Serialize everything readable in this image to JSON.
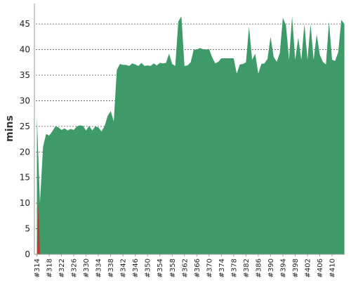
{
  "chart_data": {
    "type": "area",
    "ylabel": "mins",
    "xlabel": "",
    "title": "",
    "ylim": [
      0,
      49
    ],
    "yticks": [
      0,
      5,
      10,
      15,
      20,
      25,
      30,
      35,
      40,
      45
    ],
    "grid": true,
    "x_tick_labels": [
      "#314",
      "#318",
      "#322",
      "#326",
      "#330",
      "#334",
      "#338",
      "#342",
      "#346",
      "#350",
      "#354",
      "#358",
      "#362",
      "#366",
      "#370",
      "#374",
      "#378",
      "#382",
      "#386",
      "#390",
      "#394",
      "#398",
      "#402",
      "#406",
      "#410"
    ],
    "x_start": 314,
    "x_end": 413,
    "colors": {
      "series_main": "#3e9a68",
      "series_secondary": "#c0392b"
    },
    "series": [
      {
        "values": [
          [
            314,
            27
          ],
          [
            315,
            10
          ],
          [
            316,
            21
          ],
          [
            317,
            23.5
          ],
          [
            318,
            23.2
          ],
          [
            319,
            24
          ],
          [
            320,
            25
          ],
          [
            321,
            24.8
          ],
          [
            322,
            24.3
          ],
          [
            323,
            24.6
          ],
          [
            324,
            24.2
          ],
          [
            325,
            24.5
          ],
          [
            326,
            24.3
          ],
          [
            327,
            25
          ],
          [
            328,
            25.2
          ],
          [
            329,
            25.1
          ],
          [
            330,
            24.2
          ],
          [
            331,
            25.1
          ],
          [
            332,
            24.2
          ],
          [
            333,
            25
          ],
          [
            334,
            24.8
          ],
          [
            335,
            24
          ],
          [
            336,
            25
          ],
          [
            337,
            27
          ],
          [
            338,
            28
          ],
          [
            339,
            26
          ],
          [
            340,
            36
          ],
          [
            341,
            37.2
          ],
          [
            342,
            37
          ],
          [
            343,
            37
          ],
          [
            344,
            36.8
          ],
          [
            345,
            37.3
          ],
          [
            346,
            37.1
          ],
          [
            347,
            36.8
          ],
          [
            348,
            37.4
          ],
          [
            349,
            36.8
          ],
          [
            350,
            36.9
          ],
          [
            351,
            36.8
          ],
          [
            352,
            37.3
          ],
          [
            353,
            36.9
          ],
          [
            354,
            37.4
          ],
          [
            355,
            37.3
          ],
          [
            356,
            37.4
          ],
          [
            357,
            39.2
          ],
          [
            358,
            37.2
          ],
          [
            359,
            36.8
          ],
          [
            360,
            45.5
          ],
          [
            361,
            46.5
          ],
          [
            362,
            36.8
          ],
          [
            363,
            36.9
          ],
          [
            364,
            37.5
          ],
          [
            365,
            40
          ],
          [
            366,
            40
          ],
          [
            367,
            40.3
          ],
          [
            368,
            40.1
          ],
          [
            369,
            40
          ],
          [
            370,
            40.1
          ],
          [
            371,
            38.5
          ],
          [
            372,
            37.3
          ],
          [
            373,
            37.6
          ],
          [
            374,
            38.3
          ],
          [
            375,
            38.3
          ],
          [
            376,
            38.3
          ],
          [
            377,
            38.3
          ],
          [
            378,
            38.3
          ],
          [
            379,
            35.3
          ],
          [
            380,
            37.1
          ],
          [
            381,
            37.2
          ],
          [
            382,
            37.5
          ],
          [
            383,
            44.5
          ],
          [
            384,
            38
          ],
          [
            385,
            39.2
          ],
          [
            386,
            35.3
          ],
          [
            387,
            37.2
          ],
          [
            388,
            37.3
          ],
          [
            389,
            38.2
          ],
          [
            390,
            42.5
          ],
          [
            391,
            38.6
          ],
          [
            392,
            37.6
          ],
          [
            393,
            39.3
          ],
          [
            394,
            46.2
          ],
          [
            395,
            44.8
          ],
          [
            396,
            38
          ],
          [
            397,
            46.5
          ],
          [
            398,
            38
          ],
          [
            399,
            42.3
          ],
          [
            400,
            38
          ],
          [
            401,
            45
          ],
          [
            402,
            38
          ],
          [
            403,
            45
          ],
          [
            404,
            38
          ],
          [
            405,
            43
          ],
          [
            406,
            39
          ],
          [
            407,
            37.6
          ],
          [
            408,
            37.1
          ],
          [
            409,
            45.5
          ],
          [
            410,
            38
          ],
          [
            411,
            37.8
          ],
          [
            412,
            39.5
          ],
          [
            413,
            45.8
          ],
          [
            414,
            45
          ]
        ]
      },
      {
        "values": [
          [
            314,
            0
          ],
          [
            314.5,
            10
          ],
          [
            315,
            0
          ]
        ]
      }
    ]
  }
}
